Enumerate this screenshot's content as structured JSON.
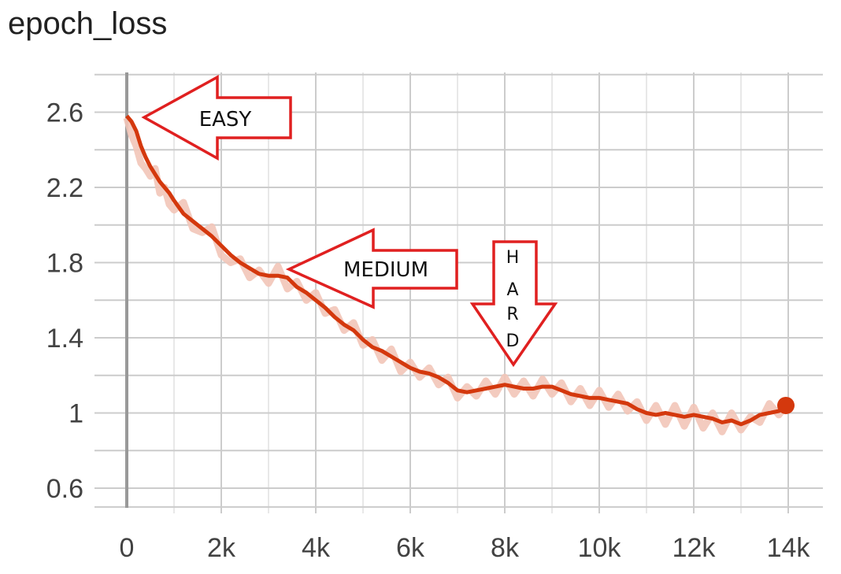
{
  "chart_data": {
    "type": "line",
    "title": "epoch_loss",
    "xlabel": "",
    "ylabel": "",
    "xlim": [
      -300,
      14400
    ],
    "ylim": [
      0.45,
      2.8
    ],
    "x_ticks": [
      0,
      2000,
      4000,
      6000,
      8000,
      10000,
      12000,
      14000
    ],
    "x_tick_labels": [
      "0",
      "2k",
      "4k",
      "6k",
      "8k",
      "10k",
      "12k",
      "14k"
    ],
    "y_ticks": [
      0.6,
      1.0,
      1.4,
      1.8,
      2.2,
      2.6
    ],
    "y_tick_labels": [
      "0.6",
      "1",
      "1.4",
      "1.8",
      "2.2",
      "2.6"
    ],
    "grid": true,
    "series": [
      {
        "smoothed": {
          "x": [
            0,
            100,
            200,
            300,
            400,
            500,
            600,
            700,
            800,
            900,
            1000,
            1200,
            1400,
            1600,
            1800,
            2000,
            2200,
            2400,
            2600,
            2800,
            3000,
            3200,
            3400,
            3600,
            3800,
            4000,
            4200,
            4400,
            4600,
            4800,
            5000,
            5200,
            5400,
            5600,
            5800,
            6000,
            6200,
            6400,
            6600,
            6800,
            7000,
            7200,
            7400,
            7600,
            7800,
            8000,
            8200,
            8400,
            8600,
            8800,
            9000,
            9200,
            9400,
            9600,
            9800,
            10000,
            10200,
            10400,
            10600,
            10800,
            11000,
            11200,
            11400,
            11600,
            11800,
            12000,
            12200,
            12400,
            12600,
            12800,
            13000,
            13200,
            13400,
            13600,
            13800,
            13950
          ],
          "y": [
            2.58,
            2.55,
            2.5,
            2.42,
            2.36,
            2.31,
            2.27,
            2.23,
            2.2,
            2.17,
            2.13,
            2.06,
            2.02,
            1.98,
            1.94,
            1.89,
            1.84,
            1.8,
            1.77,
            1.74,
            1.73,
            1.73,
            1.72,
            1.67,
            1.64,
            1.6,
            1.56,
            1.51,
            1.47,
            1.44,
            1.39,
            1.35,
            1.33,
            1.3,
            1.27,
            1.24,
            1.22,
            1.21,
            1.19,
            1.16,
            1.12,
            1.11,
            1.12,
            1.13,
            1.14,
            1.15,
            1.14,
            1.13,
            1.13,
            1.14,
            1.14,
            1.12,
            1.1,
            1.09,
            1.08,
            1.08,
            1.07,
            1.06,
            1.05,
            1.02,
            1.0,
            0.99,
            1.0,
            0.99,
            0.98,
            0.99,
            0.98,
            0.97,
            0.95,
            0.96,
            0.94,
            0.96,
            0.99,
            1.0,
            1.01,
            1.04
          ]
        },
        "raw": {
          "x": [
            0,
            100,
            200,
            300,
            400,
            500,
            600,
            700,
            800,
            900,
            1000,
            1200,
            1400,
            1600,
            1800,
            2000,
            2200,
            2400,
            2600,
            2800,
            3000,
            3200,
            3400,
            3600,
            3800,
            4000,
            4200,
            4400,
            4600,
            4800,
            5000,
            5200,
            5400,
            5600,
            5800,
            6000,
            6200,
            6400,
            6600,
            6800,
            7000,
            7200,
            7400,
            7600,
            7800,
            8000,
            8200,
            8400,
            8600,
            8800,
            9000,
            9200,
            9400,
            9600,
            9800,
            10000,
            10200,
            10400,
            10600,
            10800,
            11000,
            11200,
            11400,
            11600,
            11800,
            12000,
            12200,
            12400,
            12600,
            12800,
            13000,
            13200,
            13400,
            13600,
            13800,
            13950
          ],
          "y": [
            2.57,
            2.48,
            2.42,
            2.33,
            2.3,
            2.26,
            2.3,
            2.17,
            2.2,
            2.11,
            2.08,
            2.12,
            1.98,
            1.96,
            1.99,
            1.84,
            1.8,
            1.82,
            1.72,
            1.76,
            1.69,
            1.78,
            1.66,
            1.7,
            1.6,
            1.64,
            1.53,
            1.55,
            1.44,
            1.48,
            1.36,
            1.39,
            1.28,
            1.34,
            1.22,
            1.27,
            1.19,
            1.24,
            1.15,
            1.19,
            1.08,
            1.14,
            1.09,
            1.17,
            1.1,
            1.19,
            1.1,
            1.17,
            1.09,
            1.18,
            1.1,
            1.16,
            1.06,
            1.13,
            1.04,
            1.12,
            1.03,
            1.1,
            1.01,
            1.06,
            0.96,
            1.04,
            0.94,
            1.04,
            0.93,
            1.03,
            0.92,
            1.0,
            0.9,
            1.0,
            0.91,
            0.98,
            0.95,
            1.05,
            0.99,
            1.04
          ]
        }
      }
    ],
    "colors": {
      "smoothed": "#d4380d",
      "raw": "#f2c5b8",
      "grid": "#cccccc",
      "axis_zero": "#999999",
      "annotation": "#e02020"
    }
  },
  "annotations": {
    "easy": "EASY",
    "medium": "MEDIUM",
    "hard_letters": [
      "H",
      "A",
      "R",
      "D"
    ]
  }
}
